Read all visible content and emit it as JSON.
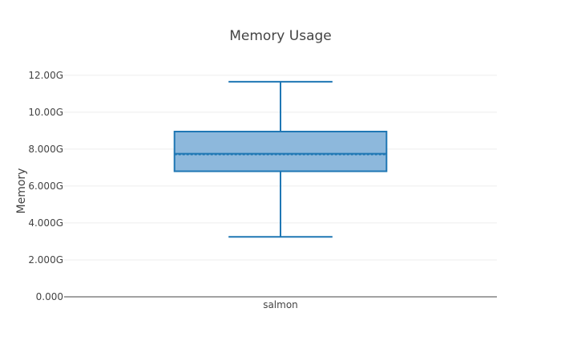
{
  "chart_data": {
    "type": "box",
    "title": "Memory Usage",
    "xlabel": "",
    "ylabel": "Memory",
    "ylim": [
      0,
      12600000000
    ],
    "y_tick_values": [
      0,
      2000000000,
      4000000000,
      6000000000,
      8000000000,
      10000000000,
      12000000000
    ],
    "y_tick_labels": [
      "0.000",
      "2.000G",
      "4.000G",
      "6.000G",
      "8.000G",
      "10.00G",
      "12.00G"
    ],
    "grid": true,
    "categories": [
      "salmon"
    ],
    "series": [
      {
        "category": "salmon",
        "min": 3250000000,
        "q1": 6800000000,
        "median": 7750000000,
        "mean": 7700000000,
        "q3": 8950000000,
        "max": 11650000000
      }
    ],
    "colors": {
      "box_fill": "#8db8dc",
      "box_stroke": "#1f77b4",
      "grid": "#eeeeee",
      "zeroline": "#444444",
      "text": "#444444"
    }
  }
}
